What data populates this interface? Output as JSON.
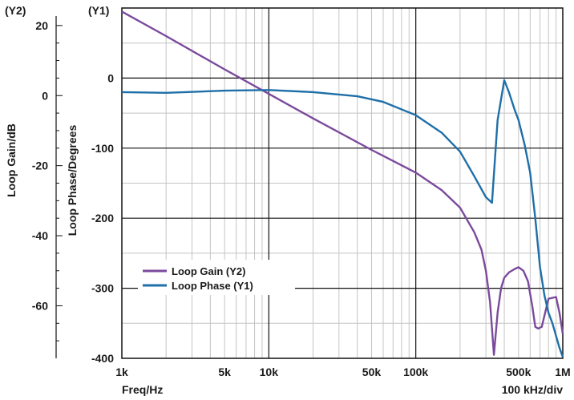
{
  "chart_data": {
    "type": "line",
    "x_scale": "log",
    "xlim": [
      1000,
      1000000
    ],
    "y1lim": [
      -400,
      100
    ],
    "y2lim": [
      -75,
      25
    ],
    "grid": true,
    "legend_position": "bottom-left",
    "y1_label": "Loop Phase/Degrees",
    "y2_label": "Loop Gain/dB",
    "y1_tag": "(Y1)",
    "y2_tag": "(Y2)",
    "x_label": "Freq/Hz",
    "x_note": "100 kHz/div",
    "x_ticks": [
      {
        "value": 1000,
        "label": "1k"
      },
      {
        "value": 5000,
        "label": "5k"
      },
      {
        "value": 10000,
        "label": "10k"
      },
      {
        "value": 50000,
        "label": "50k"
      },
      {
        "value": 100000,
        "label": "100k"
      },
      {
        "value": 500000,
        "label": "500k"
      },
      {
        "value": 1000000,
        "label": "1M"
      }
    ],
    "y1_ticks": [
      {
        "value": 0,
        "label": "0"
      },
      {
        "value": -100,
        "label": "-100"
      },
      {
        "value": -200,
        "label": "-200"
      },
      {
        "value": -300,
        "label": "-300"
      },
      {
        "value": -400,
        "label": "-400"
      }
    ],
    "y2_ticks": [
      {
        "value": 20,
        "label": "20"
      },
      {
        "value": 0,
        "label": "0"
      },
      {
        "value": -20,
        "label": "-20"
      },
      {
        "value": -40,
        "label": "-40"
      },
      {
        "value": -60,
        "label": "-60"
      }
    ],
    "series": [
      {
        "name": "Loop Gain (Y2)",
        "axis": "y2",
        "color": "#7b4a9c",
        "x": [
          1000,
          2000,
          5000,
          10000,
          20000,
          50000,
          100000,
          150000,
          200000,
          250000,
          280000,
          300000,
          320000,
          340000,
          360000,
          380000,
          400000,
          430000,
          470000,
          500000,
          540000,
          580000,
          620000,
          650000,
          680000,
          720000,
          800000,
          900000,
          950000,
          1000000
        ],
        "y": [
          24,
          17,
          7.5,
          0.5,
          -6.5,
          -15.5,
          -22,
          -27,
          -32,
          -39,
          -44,
          -50,
          -59,
          -74,
          -62,
          -55,
          -52,
          -50.5,
          -49.5,
          -49,
          -50,
          -53,
          -60,
          -66,
          -66.5,
          -66,
          -58,
          -57.5,
          -62,
          -68
        ]
      },
      {
        "name": "Loop Phase (Y1)",
        "axis": "y1",
        "color": "#1f6fa8",
        "x": [
          1000,
          2000,
          5000,
          10000,
          20000,
          40000,
          60000,
          100000,
          150000,
          200000,
          250000,
          300000,
          330000,
          360000,
          400000,
          430000,
          470000,
          500000,
          550000,
          600000,
          650000,
          700000,
          750000,
          800000,
          850000,
          900000,
          950000,
          1000000
        ],
        "y": [
          -20,
          -21,
          -18,
          -17,
          -20,
          -26,
          -34,
          -53,
          -78,
          -105,
          -140,
          -170,
          -178,
          -60,
          -3,
          -20,
          -45,
          -60,
          -95,
          -135,
          -200,
          -270,
          -310,
          -335,
          -350,
          -368,
          -385,
          -398
        ]
      }
    ]
  },
  "legend": {
    "items": [
      {
        "label": "Loop Gain (Y2)",
        "color": "#7b4a9c"
      },
      {
        "label": "Loop Phase (Y1)",
        "color": "#1f6fa8"
      }
    ]
  }
}
